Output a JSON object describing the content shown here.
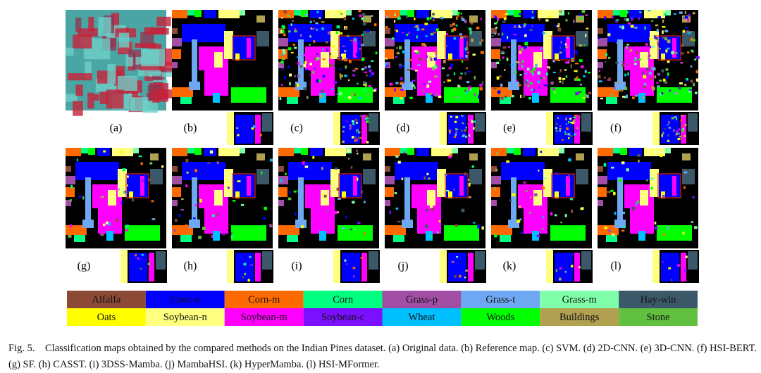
{
  "figure": {
    "panel_labels": [
      "(a)",
      "(b)",
      "(c)",
      "(d)",
      "(e)",
      "(f)",
      "(g)",
      "(h)",
      "(i)",
      "(j)",
      "(k)",
      "(l)"
    ],
    "legend": [
      {
        "name": "Alfalfa",
        "color": "#8c4a36"
      },
      {
        "name": "Corn-n",
        "color": "#0000ff"
      },
      {
        "name": "Corn-m",
        "color": "#ff6a00"
      },
      {
        "name": "Corn",
        "color": "#00ff80"
      },
      {
        "name": "Grass-p",
        "color": "#a24ea4"
      },
      {
        "name": "Grass-t",
        "color": "#6fa8f2"
      },
      {
        "name": "Grass-m",
        "color": "#80ffaa"
      },
      {
        "name": "Hay-win",
        "color": "#3b5868"
      },
      {
        "name": "Oats",
        "color": "#ffff00"
      },
      {
        "name": "Soybean-n",
        "color": "#ffff80"
      },
      {
        "name": "Soybean-m",
        "color": "#ff00ff"
      },
      {
        "name": "Soybean-c",
        "color": "#7a10ff"
      },
      {
        "name": "Wheat",
        "color": "#00c0ff"
      },
      {
        "name": "Woods",
        "color": "#00ff00"
      },
      {
        "name": "Buildings",
        "color": "#b0a050"
      },
      {
        "name": "Stone",
        "color": "#62c040"
      }
    ],
    "caption": {
      "label": "Fig. 5.",
      "text": "Classification maps obtained by the compared methods on the Indian Pines dataset. (a) Original data. (b) Reference map. (c) SVM. (d) 2D-CNN. (e) 3D-CNN. (f) HSI-BERT. (g) SF. (h) CASST. (i) 3DSS-Mamba. (j) MambaHSI. (k) HyperMamba. (l) HSI-MFormer."
    }
  }
}
